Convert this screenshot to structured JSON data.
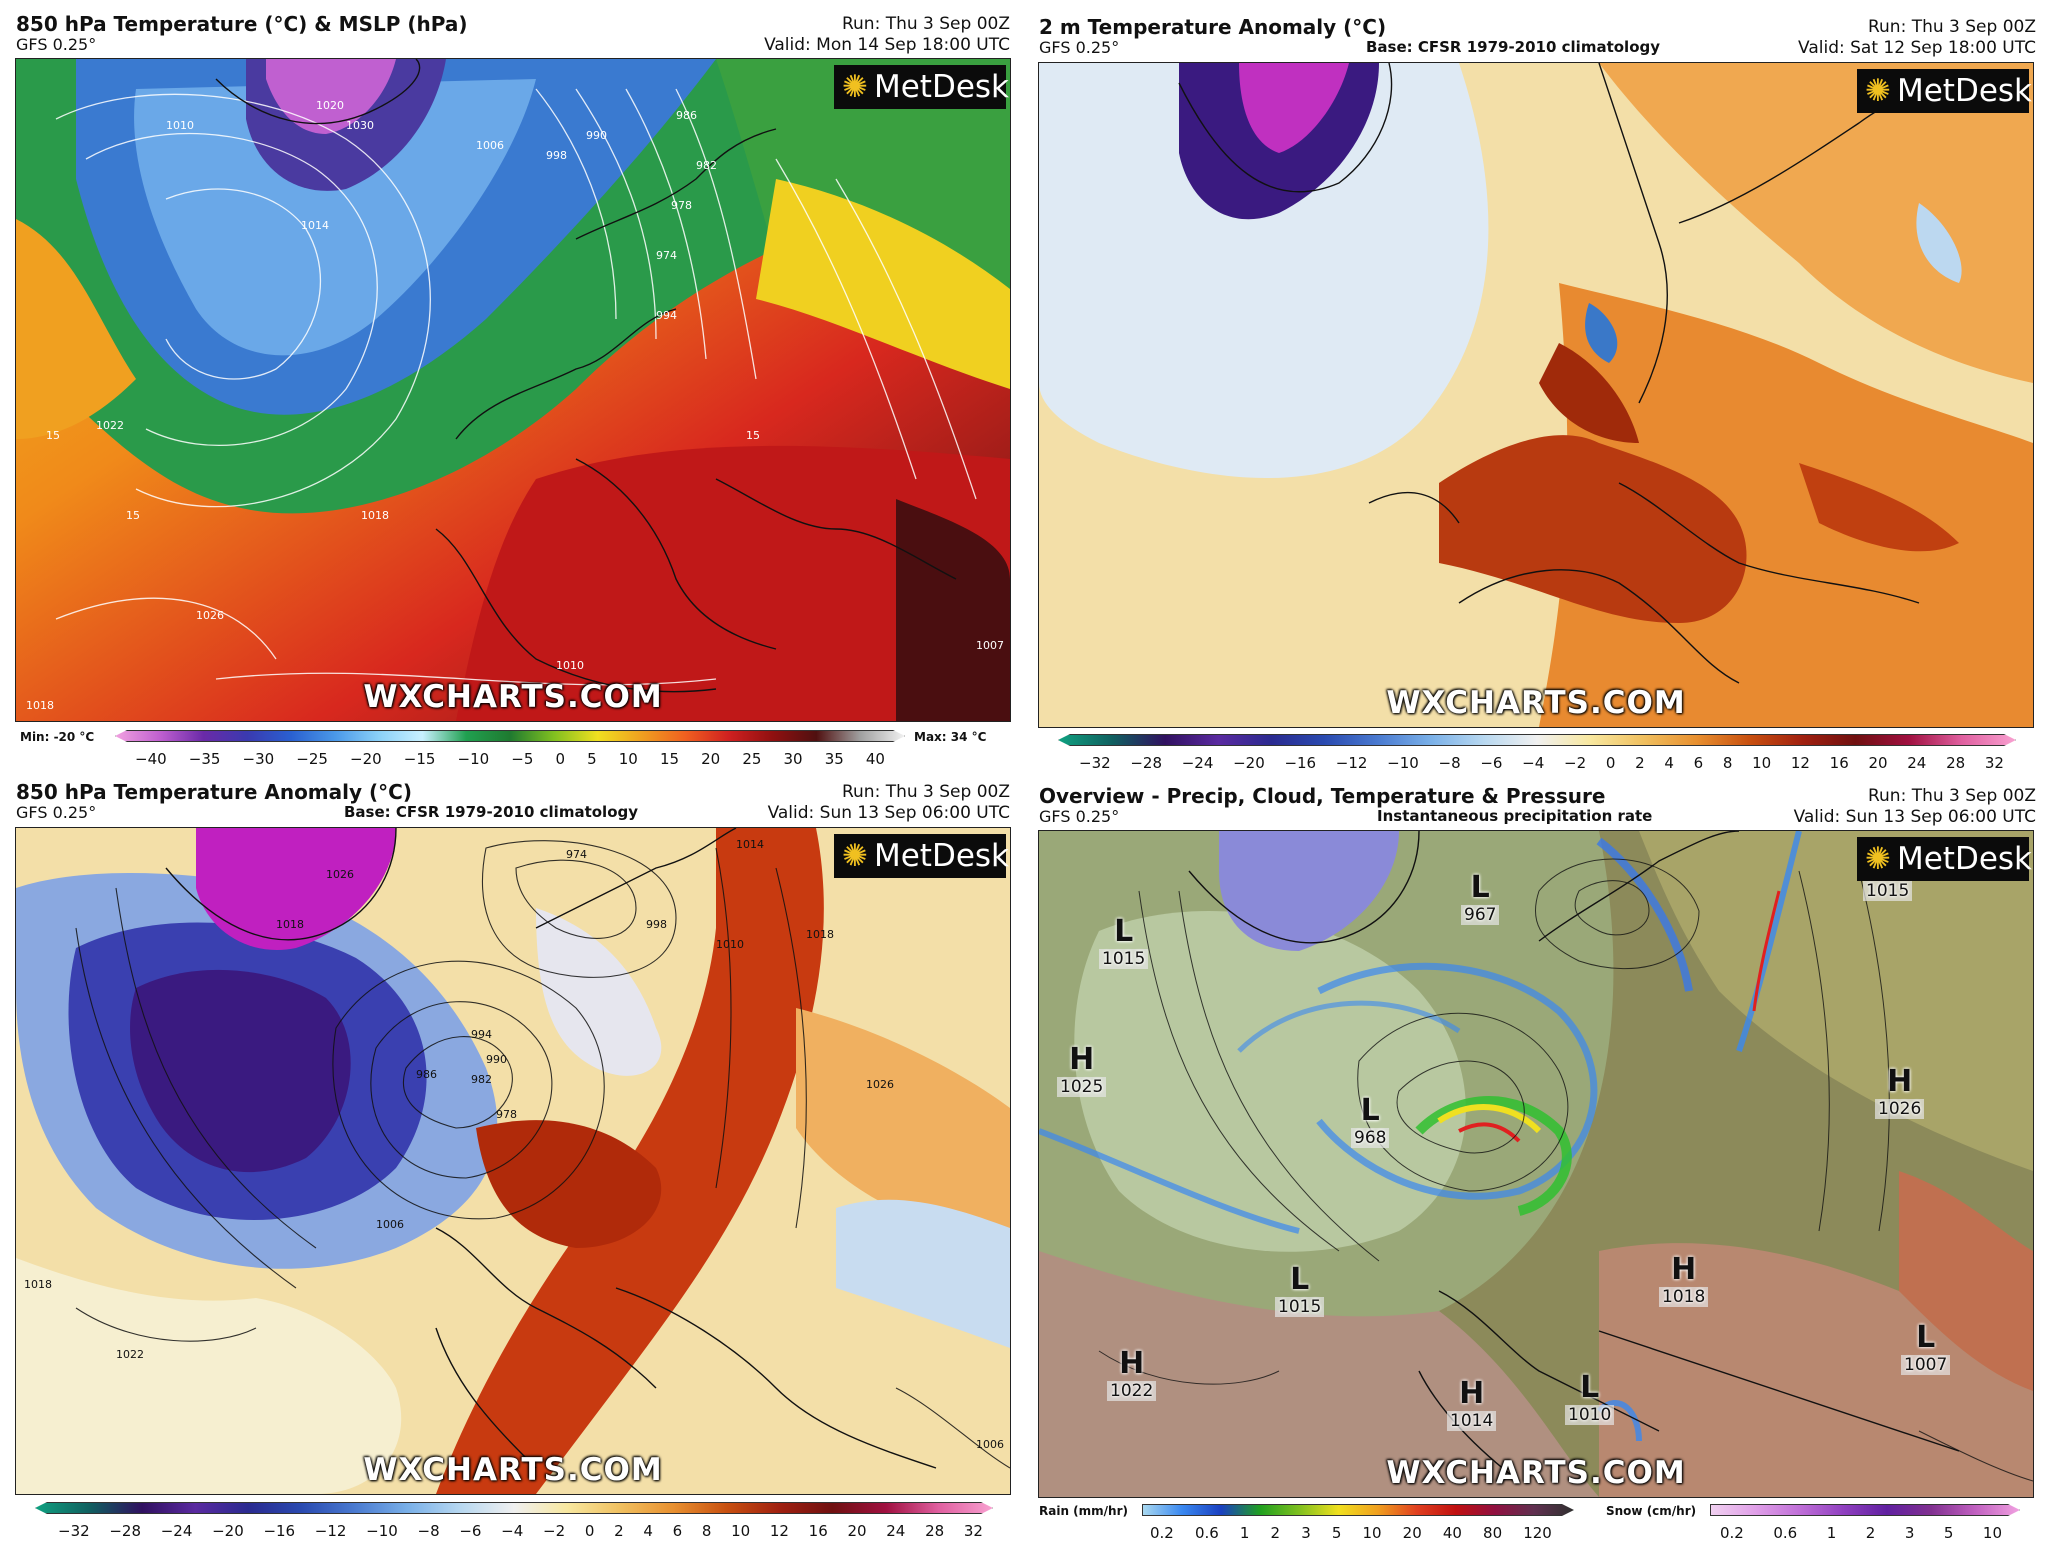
{
  "panels": {
    "p1": {
      "title": "850 hPa Temperature (°C) & MSLP (hPa)",
      "model": "GFS 0.25°",
      "run": "Run: Thu 3 Sep 00Z",
      "valid": "Valid: Mon 14 Sep 18:00 UTC",
      "min_label": "Min: -20 °C",
      "max_label": "Max: 34 °C",
      "ticks": [
        "−40",
        "−35",
        "−30",
        "−25",
        "−20",
        "−15",
        "−10",
        "−5",
        "0",
        "5",
        "10",
        "15",
        "20",
        "25",
        "30",
        "35",
        "40"
      ],
      "contour_labels": [
        "1030",
        "1020",
        "1014",
        "1010",
        "1006",
        "998",
        "990",
        "986",
        "982",
        "978",
        "974",
        "994",
        "1018",
        "1022",
        "1026",
        "1010",
        "1007",
        "15",
        "15",
        "15",
        "1018"
      ]
    },
    "p2": {
      "title": "2 m Temperature Anomaly (°C)",
      "model": "GFS 0.25°",
      "base": "Base: CFSR 1979-2010 climatology",
      "run": "Run: Thu 3 Sep 00Z",
      "valid": "Valid: Sat 12 Sep 18:00 UTC",
      "ticks": [
        "−32",
        "−28",
        "−24",
        "−20",
        "−16",
        "−12",
        "−10",
        "−8",
        "−6",
        "−4",
        "−2",
        "0",
        "2",
        "4",
        "6",
        "8",
        "10",
        "12",
        "16",
        "20",
        "24",
        "28",
        "32"
      ]
    },
    "p3": {
      "title": "850 hPa Temperature Anomaly (°C)",
      "model": "GFS 0.25°",
      "base": "Base: CFSR 1979-2010 climatology",
      "run": "Run: Thu 3 Sep 00Z",
      "valid": "Valid: Sun 13 Sep 06:00 UTC",
      "ticks": [
        "−32",
        "−28",
        "−24",
        "−20",
        "−16",
        "−12",
        "−10",
        "−8",
        "−6",
        "−4",
        "−2",
        "0",
        "2",
        "4",
        "6",
        "8",
        "10",
        "12",
        "16",
        "20",
        "24",
        "28",
        "32"
      ],
      "contour_labels": [
        "1026",
        "1018",
        "1022",
        "994",
        "990",
        "986",
        "982",
        "978",
        "974",
        "998",
        "1006",
        "1010",
        "1014",
        "1018",
        "1026",
        "1006",
        "1018"
      ]
    },
    "p4": {
      "title": "Overview - Precip, Cloud, Temperature & Pressure",
      "model": "GFS 0.25°",
      "base": "Instantaneous precipitation rate",
      "run": "Run: Thu 3 Sep 00Z",
      "valid": "Valid: Sun 13 Sep 06:00 UTC",
      "rain_label": "Rain (mm/hr)",
      "snow_label": "Snow (cm/hr)",
      "rain_ticks": [
        "0.2",
        "0.6",
        "1",
        "2",
        "3",
        "5",
        "10",
        "20",
        "40",
        "80",
        "120"
      ],
      "snow_ticks": [
        "0.2",
        "0.6",
        "1",
        "2",
        "3",
        "5",
        "10"
      ],
      "systems": [
        {
          "type": "L",
          "p": "1015"
        },
        {
          "type": "L",
          "p": "967"
        },
        {
          "type": "H",
          "p": "1015"
        },
        {
          "type": "H",
          "p": "1025"
        },
        {
          "type": "L",
          "p": "968"
        },
        {
          "type": "H",
          "p": "1026"
        },
        {
          "type": "L",
          "p": "1015"
        },
        {
          "type": "H",
          "p": "1018"
        },
        {
          "type": "H",
          "p": "1022"
        },
        {
          "type": "H",
          "p": "1014"
        },
        {
          "type": "L",
          "p": "1010"
        },
        {
          "type": "L",
          "p": "1007"
        }
      ]
    }
  },
  "branding": {
    "logo": "MetDesk",
    "watermark": "WXCHARTS.COM"
  }
}
